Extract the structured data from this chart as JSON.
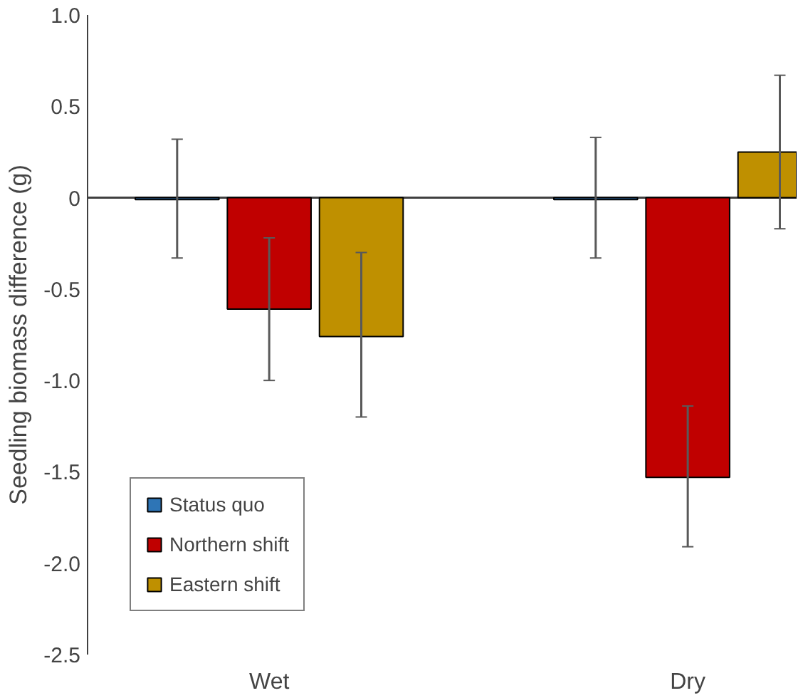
{
  "chart_data": {
    "type": "bar",
    "ylabel": "Seedling biomass difference (g)",
    "categories": [
      "Wet",
      "Dry"
    ],
    "series": [
      {
        "name": "Status quo",
        "color": "#2e75b6",
        "values": [
          -0.01,
          -0.01
        ],
        "errors": [
          [
            -0.33,
            0.32
          ],
          [
            -0.33,
            0.33
          ]
        ]
      },
      {
        "name": "Northern shift",
        "color": "#c00000",
        "values": [
          -0.61,
          -1.53
        ],
        "errors": [
          [
            -1.0,
            -0.22
          ],
          [
            -1.91,
            -1.14
          ]
        ]
      },
      {
        "name": "Eastern shift",
        "color": "#bf9000",
        "values": [
          -0.76,
          0.25
        ],
        "errors": [
          [
            -1.2,
            -0.3
          ],
          [
            -0.17,
            0.67
          ]
        ]
      }
    ],
    "ylim": [
      -2.5,
      1.0
    ],
    "yticks": [
      {
        "value": -2.5,
        "label": "-2.5"
      },
      {
        "value": -2.0,
        "label": "-2.0"
      },
      {
        "value": -1.5,
        "label": "-1.5"
      },
      {
        "value": -1.0,
        "label": "-1.0"
      },
      {
        "value": -0.5,
        "label": "-0.5"
      },
      0,
      {
        "value": 0.5,
        "label": "0.5"
      },
      {
        "value": 1.0,
        "label": "1.0"
      }
    ],
    "legend": "bottom left"
  }
}
